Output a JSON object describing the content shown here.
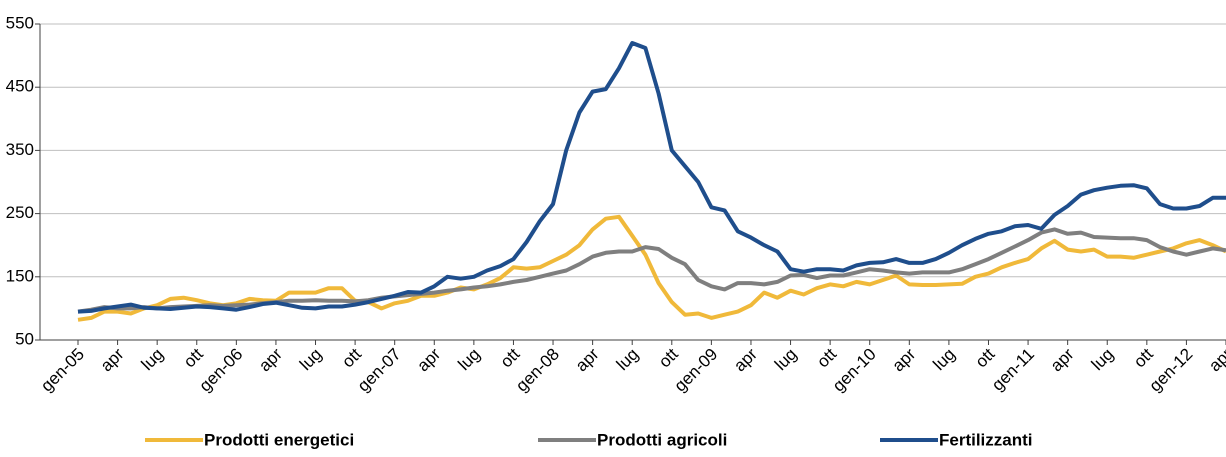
{
  "chart_data": {
    "type": "line",
    "categories": [
      "gen-05",
      null,
      null,
      "apr",
      null,
      null,
      "lug",
      null,
      null,
      "ott",
      null,
      null,
      "gen-06",
      null,
      null,
      "apr",
      null,
      null,
      "lug",
      null,
      null,
      "ott",
      null,
      null,
      "gen-07",
      null,
      null,
      "apr",
      null,
      null,
      "lug",
      null,
      null,
      "ott",
      null,
      null,
      "gen-08",
      null,
      null,
      "apr",
      null,
      null,
      "lug",
      null,
      null,
      "ott",
      null,
      null,
      "gen-09",
      null,
      null,
      "apr",
      null,
      null,
      "lug",
      null,
      null,
      "ott",
      null,
      null,
      "gen-10",
      null,
      null,
      "apr",
      null,
      null,
      "lug",
      null,
      null,
      "ott",
      null,
      null,
      "gen-11",
      null,
      null,
      "apr",
      null,
      null,
      "lug",
      null,
      null,
      "ott",
      null,
      null,
      "gen-12",
      null,
      null,
      "apr"
    ],
    "series": [
      {
        "name": "Prodotti energetici",
        "color": "#f0b93a",
        "values": [
          82,
          85,
          95,
          95,
          92,
          100,
          105,
          115,
          117,
          113,
          108,
          105,
          108,
          115,
          113,
          112,
          125,
          125,
          125,
          132,
          132,
          112,
          110,
          100,
          108,
          112,
          120,
          120,
          125,
          133,
          130,
          138,
          148,
          165,
          163,
          165,
          175,
          185,
          200,
          225,
          242,
          245,
          215,
          185,
          140,
          110,
          90,
          92,
          85,
          90,
          95,
          105,
          125,
          117,
          128,
          122,
          132,
          138,
          135,
          142,
          138,
          145,
          152,
          138,
          137,
          137,
          138,
          139,
          150,
          155,
          165,
          172,
          178,
          195,
          207,
          193,
          190,
          193,
          182,
          182,
          180,
          185,
          190,
          195,
          203,
          208,
          200,
          190
        ]
      },
      {
        "name": "Prodotti agricoli",
        "color": "#7f7f7f",
        "values": [
          95,
          98,
          102,
          100,
          100,
          102,
          100,
          102,
          103,
          104,
          105,
          104,
          105,
          106,
          108,
          110,
          112,
          112,
          113,
          112,
          112,
          111,
          113,
          117,
          119,
          121,
          123,
          125,
          128,
          130,
          133,
          135,
          138,
          142,
          145,
          150,
          155,
          160,
          170,
          182,
          188,
          190,
          190,
          197,
          194,
          180,
          170,
          145,
          135,
          130,
          140,
          140,
          138,
          142,
          152,
          153,
          148,
          152,
          152,
          157,
          162,
          160,
          157,
          155,
          157,
          157,
          157,
          162,
          170,
          178,
          188,
          198,
          208,
          220,
          225,
          218,
          220,
          213,
          212,
          211,
          211,
          208,
          197,
          190,
          185,
          190,
          195,
          192
        ]
      },
      {
        "name": "Fertilizzanti",
        "color": "#1f4e8c",
        "values": [
          95,
          96,
          100,
          103,
          106,
          101,
          100,
          99,
          101,
          103,
          102,
          100,
          98,
          102,
          107,
          109,
          105,
          101,
          100,
          103,
          103,
          106,
          110,
          115,
          120,
          126,
          125,
          135,
          150,
          147,
          150,
          160,
          167,
          178,
          205,
          238,
          265,
          350,
          410,
          443,
          447,
          480,
          520,
          512,
          440,
          350,
          325,
          300,
          260,
          255,
          222,
          212,
          200,
          190,
          162,
          158,
          162,
          162,
          160,
          168,
          172,
          173,
          178,
          172,
          172,
          178,
          188,
          200,
          210,
          218,
          222,
          230,
          232,
          226,
          248,
          262,
          280,
          287,
          291,
          294,
          295,
          290,
          265,
          258,
          258,
          262,
          275,
          275
        ]
      }
    ],
    "ylim": [
      50,
      550
    ],
    "yticks": [
      50,
      150,
      250,
      350,
      450,
      550
    ],
    "grid": true,
    "legend": "bottom"
  }
}
